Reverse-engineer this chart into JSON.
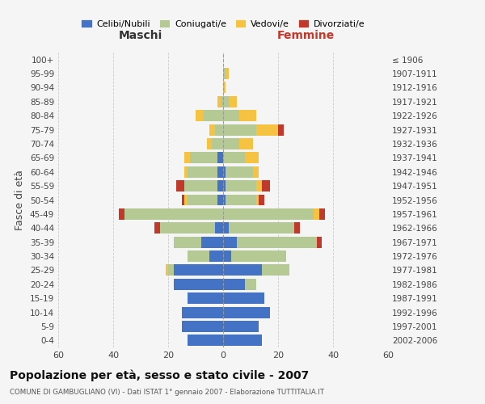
{
  "age_groups": [
    "0-4",
    "5-9",
    "10-14",
    "15-19",
    "20-24",
    "25-29",
    "30-34",
    "35-39",
    "40-44",
    "45-49",
    "50-54",
    "55-59",
    "60-64",
    "65-69",
    "70-74",
    "75-79",
    "80-84",
    "85-89",
    "90-94",
    "95-99",
    "100+"
  ],
  "birth_years": [
    "2002-2006",
    "1997-2001",
    "1992-1996",
    "1987-1991",
    "1982-1986",
    "1977-1981",
    "1972-1976",
    "1967-1971",
    "1962-1966",
    "1957-1961",
    "1952-1956",
    "1947-1951",
    "1942-1946",
    "1937-1941",
    "1932-1936",
    "1927-1931",
    "1922-1926",
    "1917-1921",
    "1912-1916",
    "1907-1911",
    "≤ 1906"
  ],
  "colors": {
    "celibi": "#4472c4",
    "coniugati": "#b5c994",
    "vedovi": "#f5c242",
    "divorziati": "#c0392b"
  },
  "maschi": {
    "celibi": [
      13,
      15,
      15,
      13,
      18,
      18,
      5,
      8,
      3,
      0,
      2,
      2,
      2,
      2,
      0,
      0,
      0,
      0,
      0,
      0,
      0
    ],
    "coniugati": [
      0,
      0,
      0,
      0,
      0,
      2,
      8,
      10,
      20,
      36,
      11,
      12,
      11,
      10,
      4,
      3,
      7,
      1,
      0,
      0,
      0
    ],
    "vedovi": [
      0,
      0,
      0,
      0,
      0,
      1,
      0,
      0,
      0,
      0,
      1,
      0,
      1,
      2,
      2,
      2,
      3,
      1,
      0,
      0,
      0
    ],
    "divorziati": [
      0,
      0,
      0,
      0,
      0,
      0,
      0,
      0,
      2,
      2,
      1,
      3,
      0,
      0,
      0,
      0,
      0,
      0,
      0,
      0,
      0
    ]
  },
  "femmine": {
    "celibi": [
      14,
      13,
      17,
      15,
      8,
      14,
      3,
      5,
      2,
      0,
      1,
      1,
      1,
      0,
      0,
      0,
      0,
      0,
      0,
      0,
      0
    ],
    "coniugati": [
      0,
      0,
      0,
      0,
      4,
      10,
      20,
      29,
      24,
      33,
      11,
      11,
      10,
      8,
      6,
      12,
      6,
      2,
      0,
      1,
      0
    ],
    "vedovi": [
      0,
      0,
      0,
      0,
      0,
      0,
      0,
      0,
      0,
      2,
      1,
      2,
      2,
      5,
      5,
      8,
      6,
      3,
      1,
      1,
      0
    ],
    "divorziati": [
      0,
      0,
      0,
      0,
      0,
      0,
      0,
      2,
      2,
      2,
      2,
      3,
      0,
      0,
      0,
      2,
      0,
      0,
      0,
      0,
      0
    ]
  },
  "xlim": 60,
  "xlabel_maschi": "Maschi",
  "xlabel_femmine": "Femmine",
  "ylabel": "Fasce di età",
  "title": "Popolazione per età, sesso e stato civile - 2007",
  "subtitle": "COMUNE DI GAMBUGLIANO (VI) - Dati ISTAT 1° gennaio 2007 - Elaborazione TUTTITALIA.IT",
  "legend_labels": [
    "Celibi/Nubili",
    "Coniugati/e",
    "Vedovi/e",
    "Divorziati/e"
  ],
  "bar_height": 0.8,
  "bg_color": "#f5f5f5"
}
